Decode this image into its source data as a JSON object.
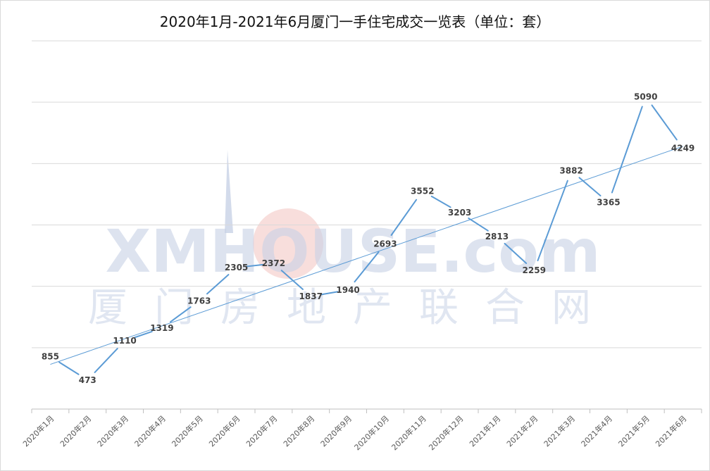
{
  "title": "2020年1月-2021年6月厦门一手住宅成交一览表（单位：套）",
  "watermark": {
    "brand": "XMHOUSE.com",
    "subtitle": "厦门房地产联合网",
    "color": "#c8d2e6",
    "accent": "#f3c3bf"
  },
  "chart_data": {
    "type": "line",
    "title": "2020年1月-2021年6月厦门一手住宅成交一览表（单位：套）",
    "categories": [
      "2020年1月",
      "2020年2月",
      "2020年3月",
      "2020年4月",
      "2020年5月",
      "2020年6月",
      "2020年7月",
      "2020年8月",
      "2020年9月",
      "2020年10月",
      "2020年11月",
      "2020年12月",
      "2021年1月",
      "2021年2月",
      "2021年3月",
      "2021年4月",
      "2021年5月",
      "2021年6月"
    ],
    "series": [
      {
        "values": [
          855,
          473,
          1110,
          1319,
          1763,
          2305,
          2372,
          1837,
          1940,
          2693,
          3552,
          3203,
          2813,
          2259,
          3882,
          3365,
          5090,
          4249
        ],
        "color": "#5b9bd5"
      }
    ],
    "trendline": {
      "show": true,
      "type": "linear",
      "color": "#5b9bd5"
    },
    "ylim": [
      0,
      6000
    ],
    "y_gridlines": [
      1000,
      2000,
      3000,
      4000,
      5000,
      6000
    ],
    "y_tick_labels_shown": false,
    "grid": true,
    "legend": "none",
    "data_labels": true
  }
}
